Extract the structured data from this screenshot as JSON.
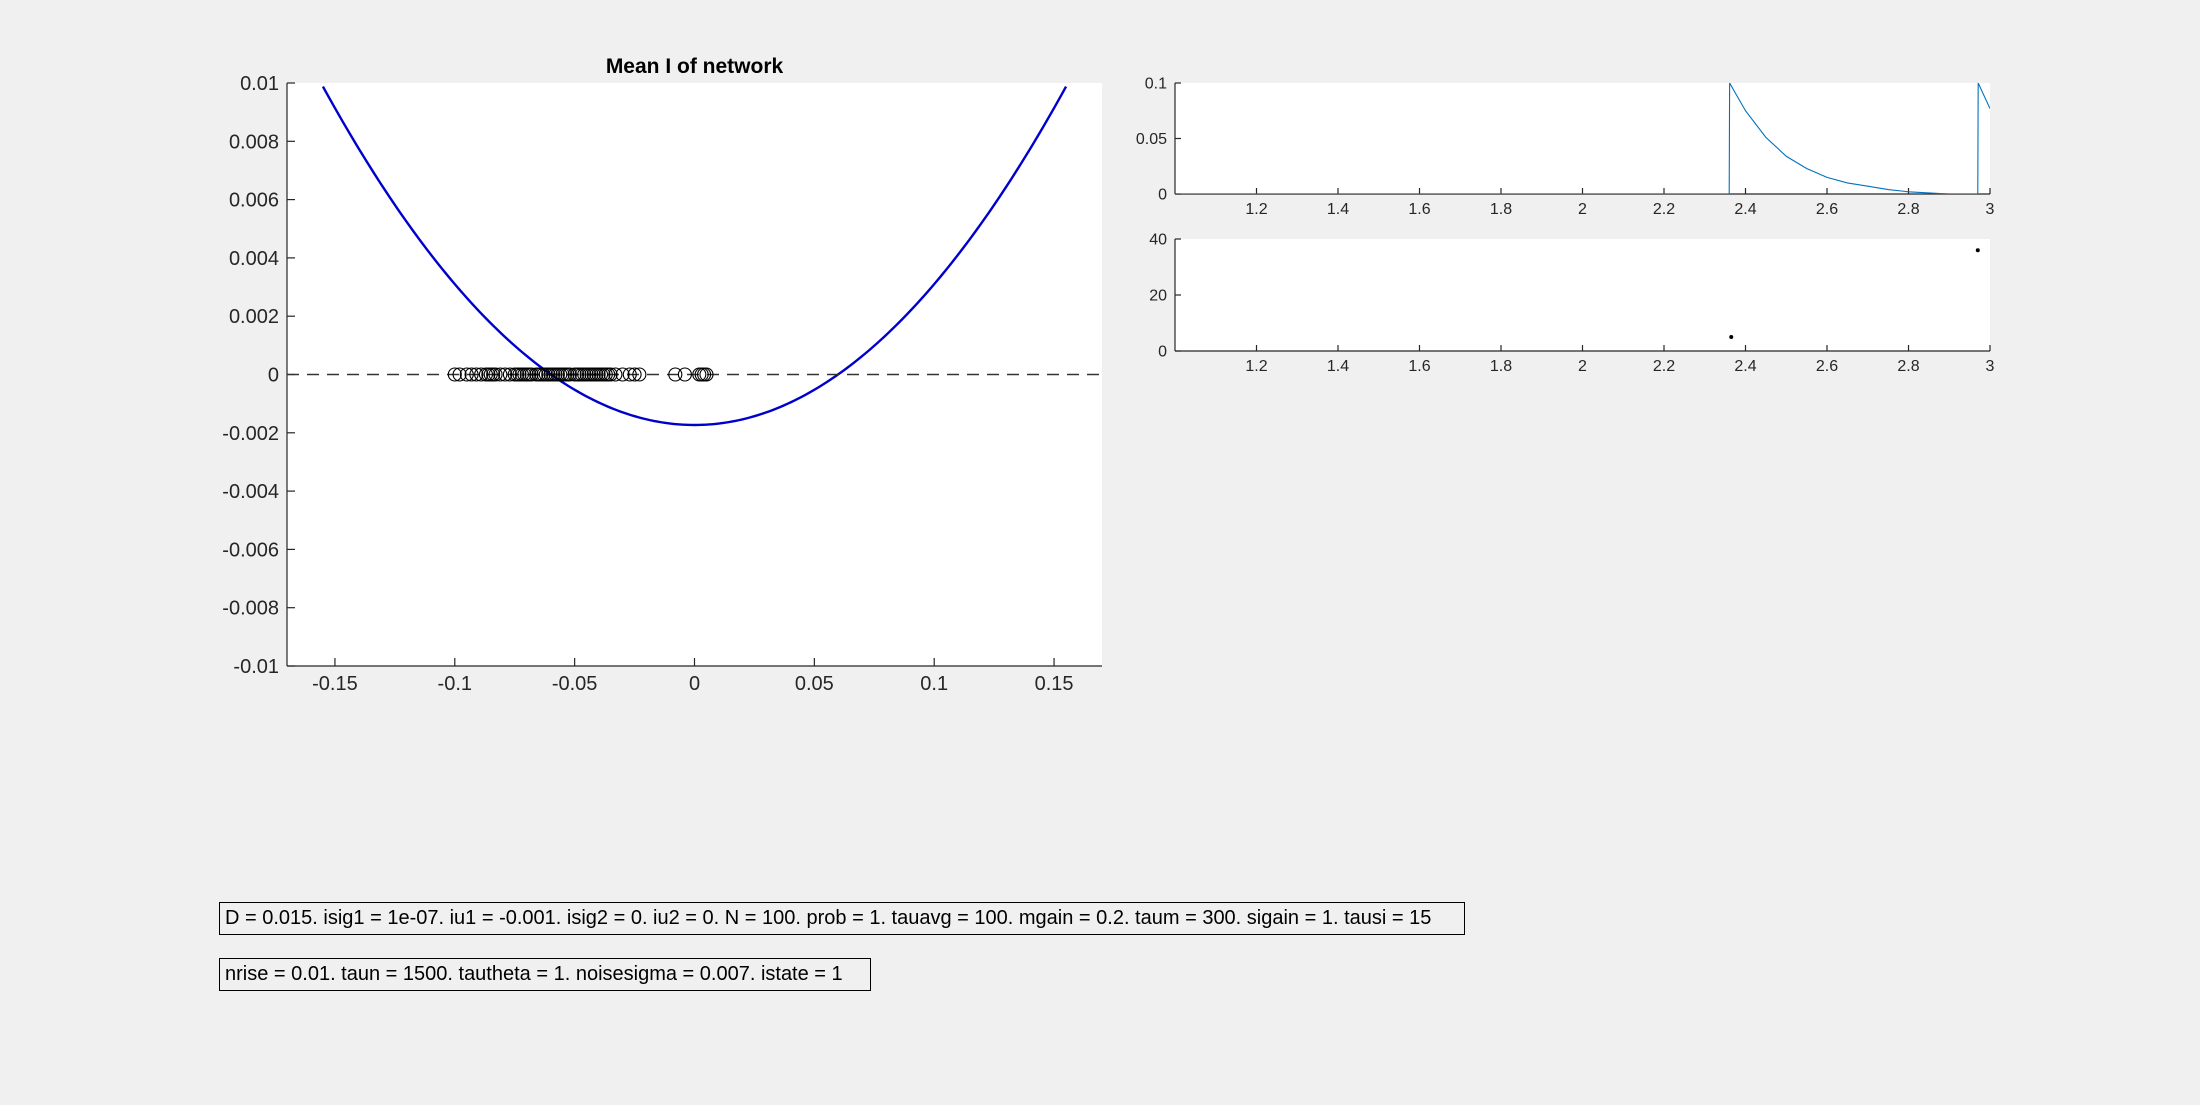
{
  "figure": {
    "background": "#f0f0f0",
    "axes_background": "#ffffff"
  },
  "chart_data": [
    {
      "id": "main",
      "type": "line",
      "title": "Mean I of network",
      "xlabel": "",
      "ylabel": "",
      "xlim": [
        -0.17,
        0.17
      ],
      "ylim": [
        -0.01,
        0.01
      ],
      "xticks": [
        -0.15,
        -0.1,
        -0.05,
        0,
        0.05,
        0.1,
        0.15
      ],
      "xtick_labels": [
        "-0.15",
        "-0.1",
        "-0.05",
        "0",
        "0.05",
        "0.1",
        "0.15"
      ],
      "yticks": [
        0.01,
        0.008,
        0.006,
        0.004,
        0.002,
        0,
        -0.002,
        -0.004,
        -0.006,
        -0.008,
        -0.01
      ],
      "ytick_labels": [
        "0.01",
        "0.008",
        "0.006",
        "0.004",
        "0.002",
        "0",
        "-0.002",
        "-0.004",
        "-0.006",
        "-0.008",
        "-0.01"
      ],
      "grid": false,
      "series": [
        {
          "kind": "curve",
          "color": "#0000cc",
          "x": [
            -0.155,
            -0.14,
            -0.12,
            -0.1,
            -0.08,
            -0.06,
            -0.04,
            -0.02,
            0,
            0.02,
            0.04,
            0.06,
            0.08,
            0.1,
            0.12,
            0.14,
            0.155
          ],
          "y": [
            0.0099,
            0.0077,
            0.0052,
            0.0031,
            0.0014,
            0.0001,
            -0.0009,
            -0.0016,
            -0.0019,
            -0.0016,
            -0.0009,
            0.0001,
            0.0014,
            0.0031,
            0.0052,
            0.0077,
            0.0099
          ]
        },
        {
          "kind": "hline",
          "style": "dashed",
          "color": "#333333",
          "y": 0
        },
        {
          "kind": "markers",
          "marker": "circle-open",
          "color": "#000000",
          "x": [
            -0.1,
            -0.098,
            -0.095,
            -0.093,
            -0.091,
            -0.089,
            -0.087,
            -0.086,
            -0.085,
            -0.084,
            -0.083,
            -0.081,
            -0.079,
            -0.077,
            -0.075,
            -0.074,
            -0.073,
            -0.072,
            -0.071,
            -0.07,
            -0.069,
            -0.068,
            -0.066,
            -0.065,
            -0.064,
            -0.063,
            -0.062,
            -0.061,
            -0.06,
            -0.059,
            -0.058,
            -0.057,
            -0.056,
            -0.055,
            -0.054,
            -0.053,
            -0.052,
            -0.05,
            -0.049,
            -0.048,
            -0.047,
            -0.046,
            -0.045,
            -0.044,
            -0.043,
            -0.042,
            -0.041,
            -0.04,
            -0.039,
            -0.038,
            -0.037,
            -0.036,
            -0.035,
            -0.033,
            -0.03,
            -0.027,
            -0.025,
            -0.023,
            -0.008,
            -0.004,
            0.002,
            0.003,
            0.004,
            0.005
          ],
          "y": [
            0,
            0,
            0,
            0,
            0,
            0,
            0,
            0,
            0,
            0,
            0,
            0,
            0,
            0,
            0,
            0,
            0,
            0,
            0,
            0,
            0,
            0,
            0,
            0,
            0,
            0,
            0,
            0,
            0,
            0,
            0,
            0,
            0,
            0,
            0,
            0,
            0,
            0,
            0,
            0,
            0,
            0,
            0,
            0,
            0,
            0,
            0,
            0,
            0,
            0,
            0,
            0,
            0,
            0,
            0,
            0,
            0,
            0,
            0,
            0,
            0,
            0,
            0,
            0
          ]
        }
      ]
    },
    {
      "id": "top-right",
      "type": "line",
      "title": "",
      "xlabel": "",
      "ylabel": "",
      "xlim": [
        1.0,
        3.0
      ],
      "ylim": [
        0,
        0.1
      ],
      "xticks": [
        1.2,
        1.4,
        1.6,
        1.8,
        2,
        2.2,
        2.4,
        2.6,
        2.8,
        3
      ],
      "xtick_labels": [
        "1.2",
        "1.4",
        "1.6",
        "1.8",
        "2",
        "2.2",
        "2.4",
        "2.6",
        "2.8",
        "3"
      ],
      "yticks": [
        0.1,
        0.05,
        0
      ],
      "ytick_labels": [
        "0.1",
        "0.05",
        "0"
      ],
      "grid": false,
      "series": [
        {
          "kind": "curve",
          "color": "#0072bd",
          "x": [
            1.0,
            2.36,
            2.361,
            2.4,
            2.45,
            2.5,
            2.55,
            2.6,
            2.65,
            2.7,
            2.75,
            2.8,
            2.85,
            2.9,
            2.97,
            2.971,
            3.0
          ],
          "y": [
            0,
            0,
            0.1,
            0.075,
            0.051,
            0.034,
            0.023,
            0.015,
            0.01,
            0.007,
            0.004,
            0.002,
            0.001,
            0,
            0,
            0.1,
            0.077
          ]
        }
      ]
    },
    {
      "id": "bottom-right",
      "type": "scatter",
      "title": "",
      "xlabel": "",
      "ylabel": "",
      "xlim": [
        1.0,
        3.0
      ],
      "ylim": [
        0,
        40
      ],
      "xticks": [
        1.2,
        1.4,
        1.6,
        1.8,
        2,
        2.2,
        2.4,
        2.6,
        2.8,
        3
      ],
      "xtick_labels": [
        "1.2",
        "1.4",
        "1.6",
        "1.8",
        "2",
        "2.2",
        "2.4",
        "2.6",
        "2.8",
        "3"
      ],
      "yticks": [
        40,
        20,
        0
      ],
      "ytick_labels": [
        "40",
        "20",
        "0"
      ],
      "grid": false,
      "series": [
        {
          "kind": "points",
          "color": "#000000",
          "x": [
            2.365,
            2.97
          ],
          "y": [
            5,
            36
          ]
        }
      ]
    }
  ],
  "params": {
    "line1": "D = 0.015. isig1 = 1e-07. iu1 = -0.001. isig2 = 0. iu2 = 0. N = 100. prob = 1. tauavg = 100. mgain = 0.2. taum = 300. sigain = 1. tausi = 15",
    "line2": "nrise = 0.01. taun = 1500. tautheta = 1. noisesigma = 0.007. istate = 1"
  }
}
